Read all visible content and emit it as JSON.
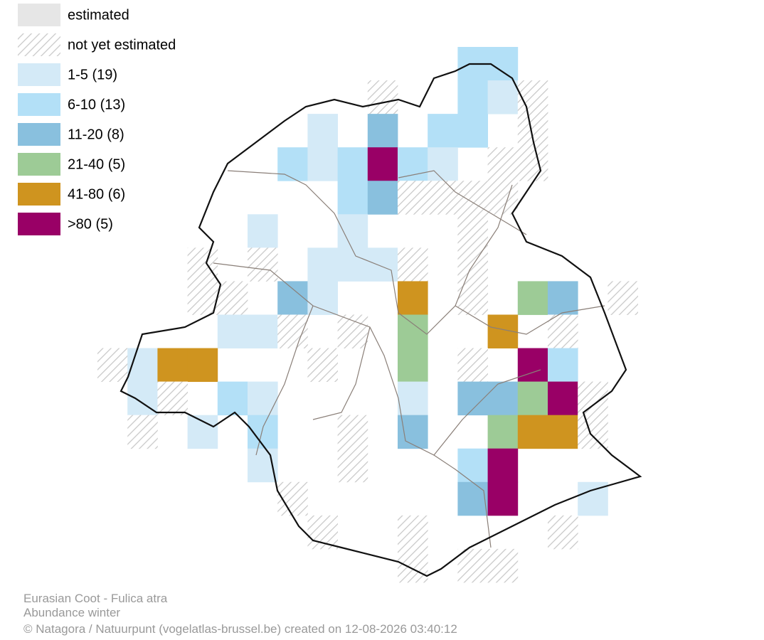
{
  "legend": [
    {
      "label": "estimated"
    },
    {
      "label": "not yet estimated"
    },
    {
      "label": "1-5 (19)"
    },
    {
      "label": "6-10 (13)"
    },
    {
      "label": "11-20 (8)"
    },
    {
      "label": "21-40 (5)"
    },
    {
      "label": "41-80 (6)"
    },
    {
      "label": ">80 (5)"
    }
  ],
  "footer": [
    "Eurasian Coot - Fulica atra",
    "Abundance winter",
    "© Natagora / Natuurpunt (vogelatlas-brussel.be) created on 12-08-2026 03:40:12"
  ]
}
